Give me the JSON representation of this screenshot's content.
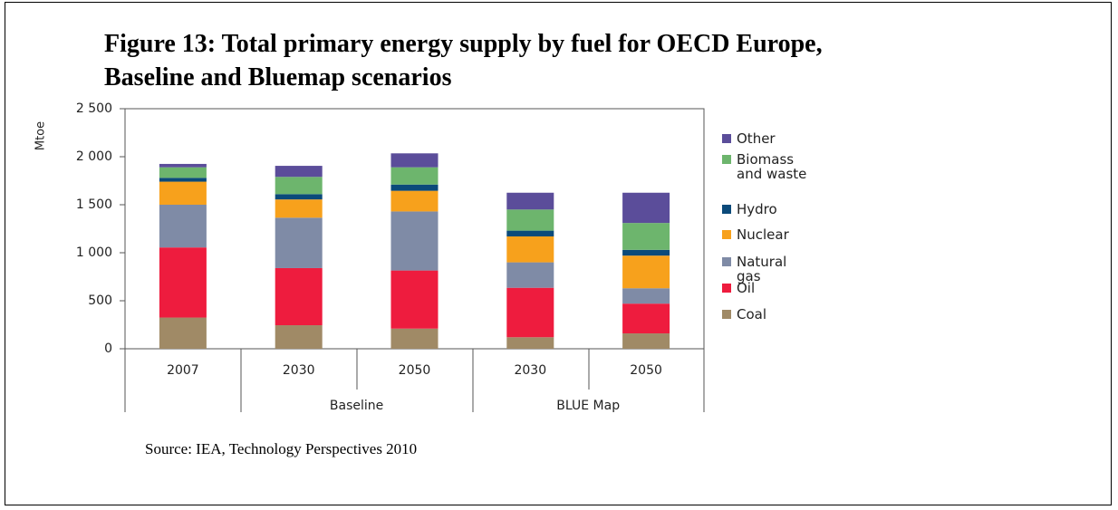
{
  "chart_data": {
    "type": "stacked_bar",
    "title": "Figure 13: Total primary energy supply by fuel for OECD Europe, Baseline and Bluemap scenarios",
    "ylabel": "Mtoe",
    "source": "Source: IEA, Technology Perspectives 2010",
    "categories": [
      "2007",
      "2030",
      "2050",
      "2030",
      "2050"
    ],
    "group_of": [
      null,
      "Baseline",
      "Baseline",
      "BLUE Map",
      "BLUE Map"
    ],
    "ylim": [
      0,
      2500
    ],
    "yticks": [
      0,
      500,
      {
        "value": 1000,
        "label": "1 000"
      },
      {
        "value": 1500,
        "label": "1 500"
      },
      {
        "value": 2000,
        "label": "2 000"
      },
      {
        "value": 2500,
        "label": "2 500"
      }
    ],
    "grid": false,
    "legend": "right",
    "series": [
      {
        "name": "Coal",
        "color": "#a08a66",
        "values": [
          325,
          245,
          210,
          120,
          160
        ]
      },
      {
        "name": "Oil",
        "color": "#ee1c3e",
        "values": [
          730,
          595,
          605,
          515,
          310
        ]
      },
      {
        "name": "Natural gas",
        "color": "#7f8ba6",
        "values": [
          445,
          525,
          615,
          265,
          160
        ]
      },
      {
        "name": "Nuclear",
        "color": "#f7a11c",
        "values": [
          240,
          190,
          215,
          270,
          340
        ]
      },
      {
        "name": "Hydro",
        "color": "#0b4a7a",
        "values": [
          40,
          55,
          65,
          60,
          60
        ]
      },
      {
        "name": "Biomass and waste",
        "color": "#6db56d",
        "values": [
          110,
          180,
          180,
          220,
          280
        ]
      },
      {
        "name": "Other",
        "color": "#5b4d9a",
        "values": [
          35,
          115,
          145,
          175,
          315
        ]
      }
    ]
  }
}
